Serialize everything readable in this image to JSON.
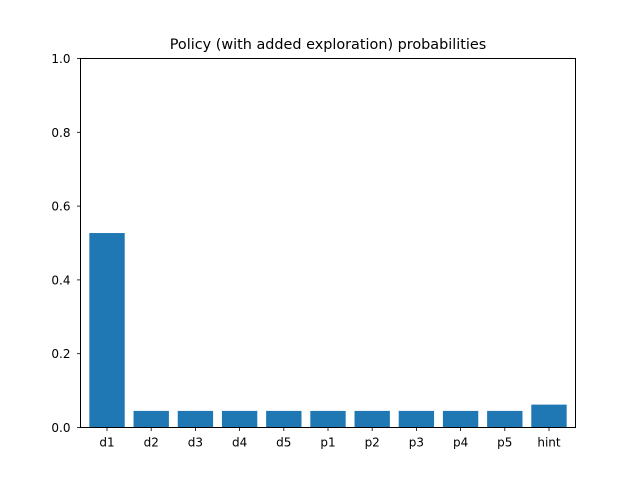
{
  "chart_data": {
    "type": "bar",
    "title": "Policy (with added exploration) probabilities",
    "xlabel": "",
    "ylabel": "",
    "categories": [
      "d1",
      "d2",
      "d3",
      "d4",
      "d5",
      "p1",
      "p2",
      "p3",
      "p4",
      "p5",
      "hint"
    ],
    "values": [
      0.527,
      0.045,
      0.045,
      0.045,
      0.045,
      0.045,
      0.045,
      0.045,
      0.045,
      0.045,
      0.062
    ],
    "ylim": [
      0,
      1.0
    ],
    "yticks": [
      0.0,
      0.2,
      0.4,
      0.6,
      0.8,
      1.0
    ],
    "ytick_labels": [
      "0.0",
      "0.2",
      "0.4",
      "0.6",
      "0.8",
      "1.0"
    ],
    "grid": false,
    "legend": "none",
    "bar_color": "#1f77b4"
  }
}
